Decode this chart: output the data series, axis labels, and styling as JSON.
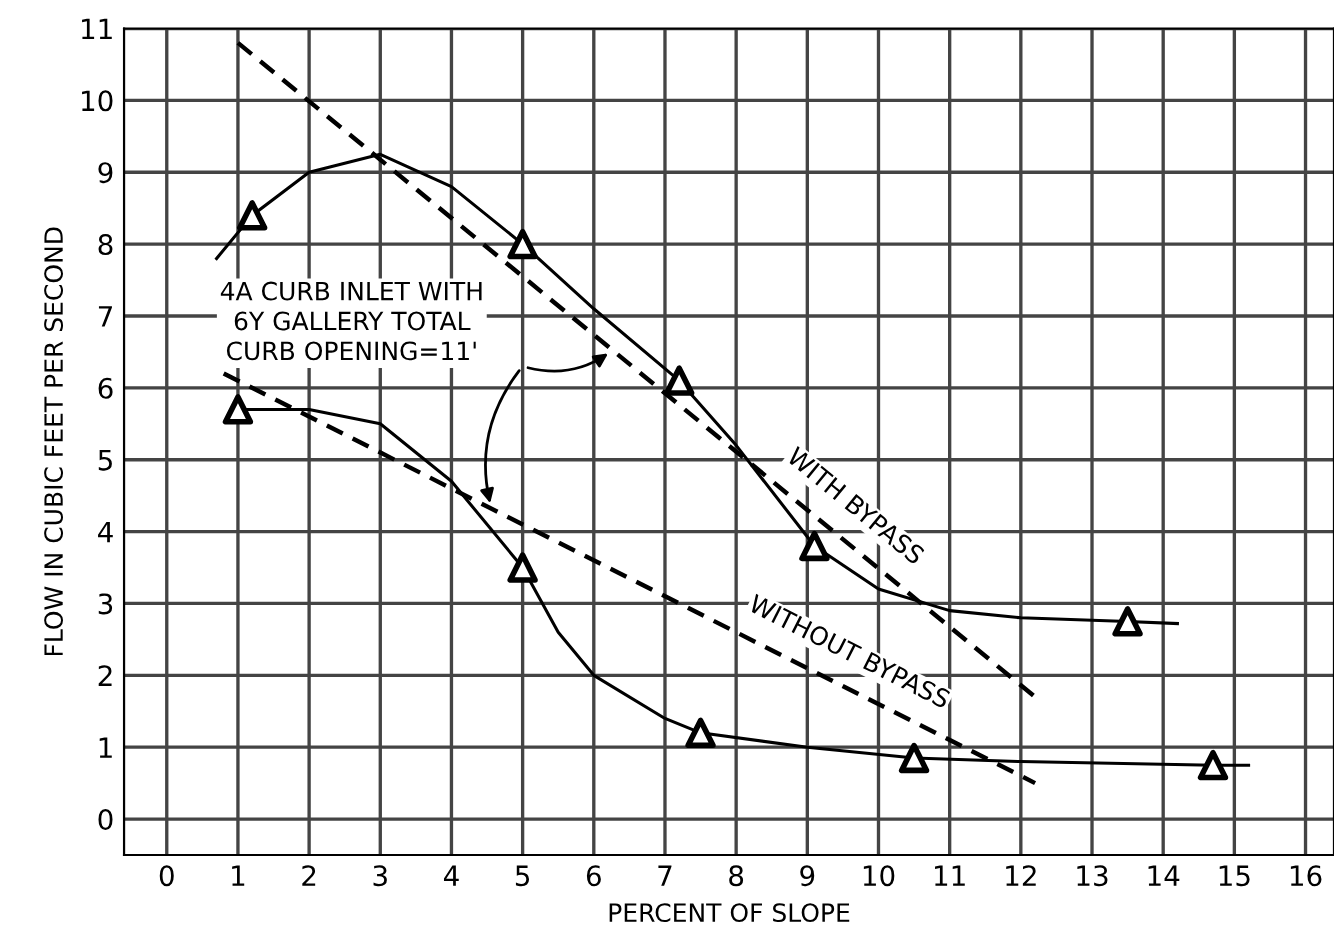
{
  "chart_data": {
    "type": "line",
    "xlabel": "PERCENT OF SLOPE",
    "ylabel": "FLOW IN CUBIC FEET PER SECOND",
    "xlim": [
      -0.6,
      16.4
    ],
    "ylim": [
      -0.5,
      11
    ],
    "xticks": [
      0,
      1,
      2,
      3,
      4,
      5,
      6,
      7,
      8,
      9,
      10,
      11,
      12,
      13,
      14,
      15,
      16
    ],
    "yticks": [
      0,
      1,
      2,
      3,
      4,
      5,
      6,
      7,
      8,
      9,
      10,
      11
    ],
    "grid": true,
    "annotations": [
      "4A CURB INLET WITH\n6Y GALLERY TOTAL\nCURB OPENING=11'"
    ],
    "series": [
      {
        "type": "scatter",
        "marker": "triangle",
        "color": "#000000",
        "x": [
          1.2,
          5,
          7.2,
          9.1,
          13.5
        ],
        "values": [
          8.4,
          8.0,
          6.1,
          3.8,
          2.75
        ]
      },
      {
        "type": "scatter",
        "marker": "triangle",
        "color": "#000000",
        "x": [
          1.0,
          5,
          7.5,
          10.5,
          14.7
        ],
        "values": [
          5.7,
          3.5,
          1.2,
          0.85,
          0.75
        ]
      },
      {
        "line_style": "solid",
        "color": "#000000",
        "x": [
          0.7,
          1.2,
          2,
          3,
          4,
          5,
          6,
          7.2,
          8,
          9.1,
          10,
          11,
          12,
          13.5,
          14.2
        ],
        "values": [
          7.8,
          8.4,
          9.0,
          9.25,
          8.8,
          8.0,
          7.1,
          6.1,
          5.2,
          3.8,
          3.2,
          2.9,
          2.8,
          2.75,
          2.72
        ]
      },
      {
        "line_style": "solid",
        "color": "#000000",
        "x": [
          1.0,
          2,
          3,
          4,
          5,
          5.5,
          6,
          7,
          7.5,
          9,
          10.5,
          12,
          14.7,
          15.2
        ],
        "values": [
          5.7,
          5.7,
          5.5,
          4.7,
          3.5,
          2.6,
          2.0,
          1.4,
          1.2,
          1.0,
          0.85,
          0.8,
          0.75,
          0.75
        ]
      },
      {
        "line_style": "dashed",
        "name": "WITH BYPASS",
        "color": "#000000",
        "x": [
          1.0,
          12.2
        ],
        "values": [
          10.8,
          1.7
        ]
      },
      {
        "line_style": "dashed",
        "name": "WITHOUT BYPASS",
        "color": "#000000",
        "x": [
          0.8,
          12.2
        ],
        "values": [
          6.2,
          0.5
        ]
      }
    ]
  }
}
